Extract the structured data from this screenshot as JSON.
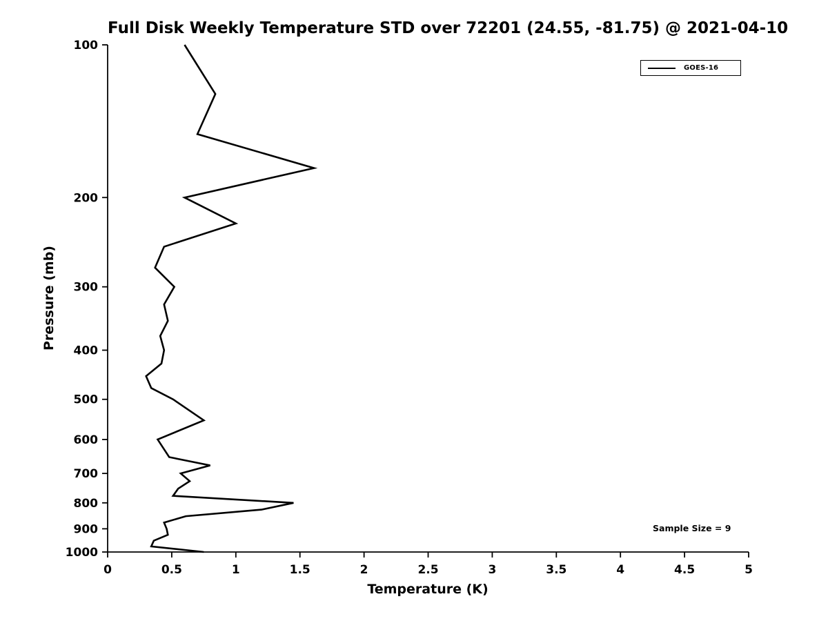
{
  "chart_data": {
    "type": "line",
    "title": "Full Disk Weekly Temperature STD over 72201 (24.55, -81.75) @ 2021-04-10",
    "xlabel": "Temperature (K)",
    "ylabel": "Pressure (mb)",
    "annotation": "Sample Size = 9",
    "grid": false,
    "legend_position": "top-right",
    "line_color": "#000000",
    "x_axis": {
      "min": 0,
      "max": 5,
      "ticks": [
        0,
        0.5,
        1,
        1.5,
        2,
        2.5,
        3,
        3.5,
        4,
        4.5,
        5
      ],
      "tick_labels": [
        "0",
        "0.5",
        "1",
        "1.5",
        "2",
        "2.5",
        "3",
        "3.5",
        "4",
        "4.5",
        "5"
      ]
    },
    "y_axis": {
      "min": 100,
      "max": 1000,
      "scale": "log",
      "direction": "reversed",
      "ticks": [
        100,
        200,
        300,
        400,
        500,
        600,
        700,
        800,
        900,
        1000
      ],
      "tick_labels": [
        "100",
        "200",
        "300",
        "400",
        "500",
        "600",
        "700",
        "800",
        "900",
        "1000"
      ]
    },
    "series": [
      {
        "name": "GOES-16",
        "color": "#000000",
        "pressure_mb": [
          100,
          125,
          150,
          175,
          200,
          225,
          250,
          275,
          300,
          325,
          350,
          375,
          400,
          425,
          450,
          475,
          500,
          550,
          600,
          650,
          675,
          700,
          725,
          750,
          775,
          800,
          825,
          850,
          875,
          900,
          925,
          950,
          975,
          1000
        ],
        "std_k": [
          0.6,
          0.84,
          0.7,
          1.61,
          0.6,
          1.0,
          0.44,
          0.37,
          0.52,
          0.44,
          0.47,
          0.41,
          0.44,
          0.42,
          0.3,
          0.34,
          0.51,
          0.75,
          0.39,
          0.48,
          0.8,
          0.57,
          0.64,
          0.55,
          0.51,
          1.45,
          1.2,
          0.61,
          0.44,
          0.46,
          0.47,
          0.36,
          0.34,
          0.75
        ]
      }
    ]
  }
}
